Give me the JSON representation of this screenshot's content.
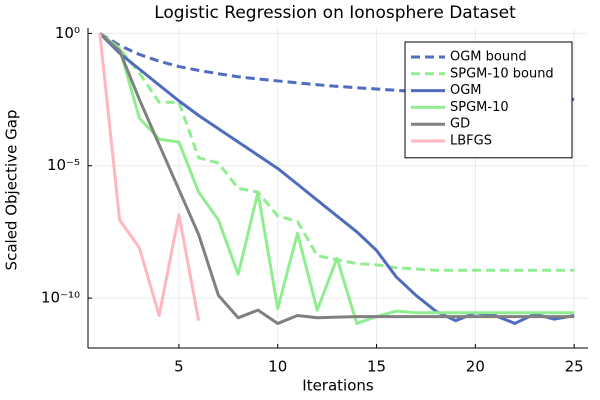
{
  "chart_data": {
    "type": "line",
    "title": "Logistic Regression on Ionosphere Dataset",
    "xlabel": "Iterations",
    "ylabel": "Scaled Objective Gap",
    "x": [
      1,
      2,
      3,
      4,
      5,
      6,
      7,
      8,
      9,
      10,
      11,
      12,
      13,
      14,
      15,
      16,
      17,
      18,
      19,
      20,
      21,
      22,
      23,
      24,
      25
    ],
    "xlim": [
      0.4,
      25.7
    ],
    "xticks": [
      5,
      10,
      15,
      20,
      25
    ],
    "ylim": [
      1.3e-12,
      1.6
    ],
    "yscale": "log",
    "yticks": [
      {
        "value": 1e-10,
        "label": "10⁻¹⁰"
      },
      {
        "value": 1e-05,
        "label": "10⁻⁵"
      },
      {
        "value": 1,
        "label": "10⁰"
      }
    ],
    "grid": true,
    "legend": "top-right",
    "series": [
      {
        "name": "OGM bound",
        "color": "#4f6cbd",
        "dash": true,
        "values": [
          1,
          0.35,
          0.16,
          0.089,
          0.056,
          0.04,
          0.03,
          0.023,
          0.019,
          0.016,
          0.0135,
          0.0115,
          0.01,
          0.0089,
          0.0079,
          0.0071,
          0.0063,
          0.0058,
          0.0052,
          0.0048,
          0.0044,
          0.004,
          0.0037,
          0.0035,
          0.0032
        ]
      },
      {
        "name": "SPGM-10 bound",
        "color": "#90ee90",
        "dash": true,
        "values": [
          1,
          0.27,
          0.032,
          0.0025,
          0.0025,
          2e-05,
          1.26e-05,
          1.4e-06,
          1e-06,
          1.26e-07,
          7.9e-08,
          4e-09,
          2.8e-09,
          2e-09,
          1.8e-09,
          1.4e-09,
          1.26e-09,
          1.12e-09,
          1.12e-09,
          1.12e-09,
          1.12e-09,
          1.12e-09,
          1.12e-09,
          1.12e-09,
          1.12e-09
        ]
      },
      {
        "name": "OGM",
        "color": "#4f6cbd",
        "dash": false,
        "values": [
          1,
          0.178,
          0.0447,
          0.0112,
          0.00282,
          0.00079,
          0.00025,
          7.9e-05,
          2.5e-05,
          7.9e-06,
          2e-06,
          5e-07,
          1.26e-07,
          3.2e-08,
          6.3e-09,
          6.3e-10,
          1.26e-10,
          3.2e-11,
          1.4e-11,
          2.8e-11,
          2.2e-11,
          1.1e-11,
          2.5e-11,
          1.6e-11,
          2.2e-11
        ]
      },
      {
        "name": "SPGM-10",
        "color": "#90ee90",
        "dash": false,
        "values": [
          1,
          0.27,
          0.00063,
          0.0001,
          7.9e-05,
          1e-06,
          8.9e-08,
          7.9e-10,
          1e-06,
          4e-11,
          2.8e-08,
          3.5e-11,
          3.2e-09,
          1.1e-11,
          2e-11,
          3.2e-11,
          2.8e-11,
          2.8e-11,
          2.8e-11,
          2.8e-11,
          2.8e-11,
          2.8e-11,
          2.8e-11,
          2.8e-11,
          2.8e-11
        ]
      },
      {
        "name": "GD",
        "color": "#808080",
        "dash": false,
        "values": [
          1,
          0.22,
          0.0032,
          6.3e-05,
          1.26e-06,
          2.5e-08,
          1.26e-10,
          1.8e-11,
          3.5e-11,
          1.1e-11,
          2.2e-11,
          1.8e-11,
          1.9e-11,
          2e-11,
          2e-11,
          2e-11,
          2e-11,
          2e-11,
          2e-11,
          2e-11,
          2e-11,
          2e-11,
          2e-11,
          2e-11,
          2e-11
        ]
      },
      {
        "name": "LBFGS",
        "color": "#ffb6c1",
        "dash": false,
        "values": [
          1,
          8.9e-08,
          7.9e-09,
          2.2e-11,
          1.4e-07,
          1.4e-11,
          null,
          null,
          null,
          null,
          null,
          null,
          null,
          null,
          null,
          null,
          null,
          null,
          null,
          null,
          null,
          null,
          null,
          null,
          null
        ]
      }
    ]
  }
}
